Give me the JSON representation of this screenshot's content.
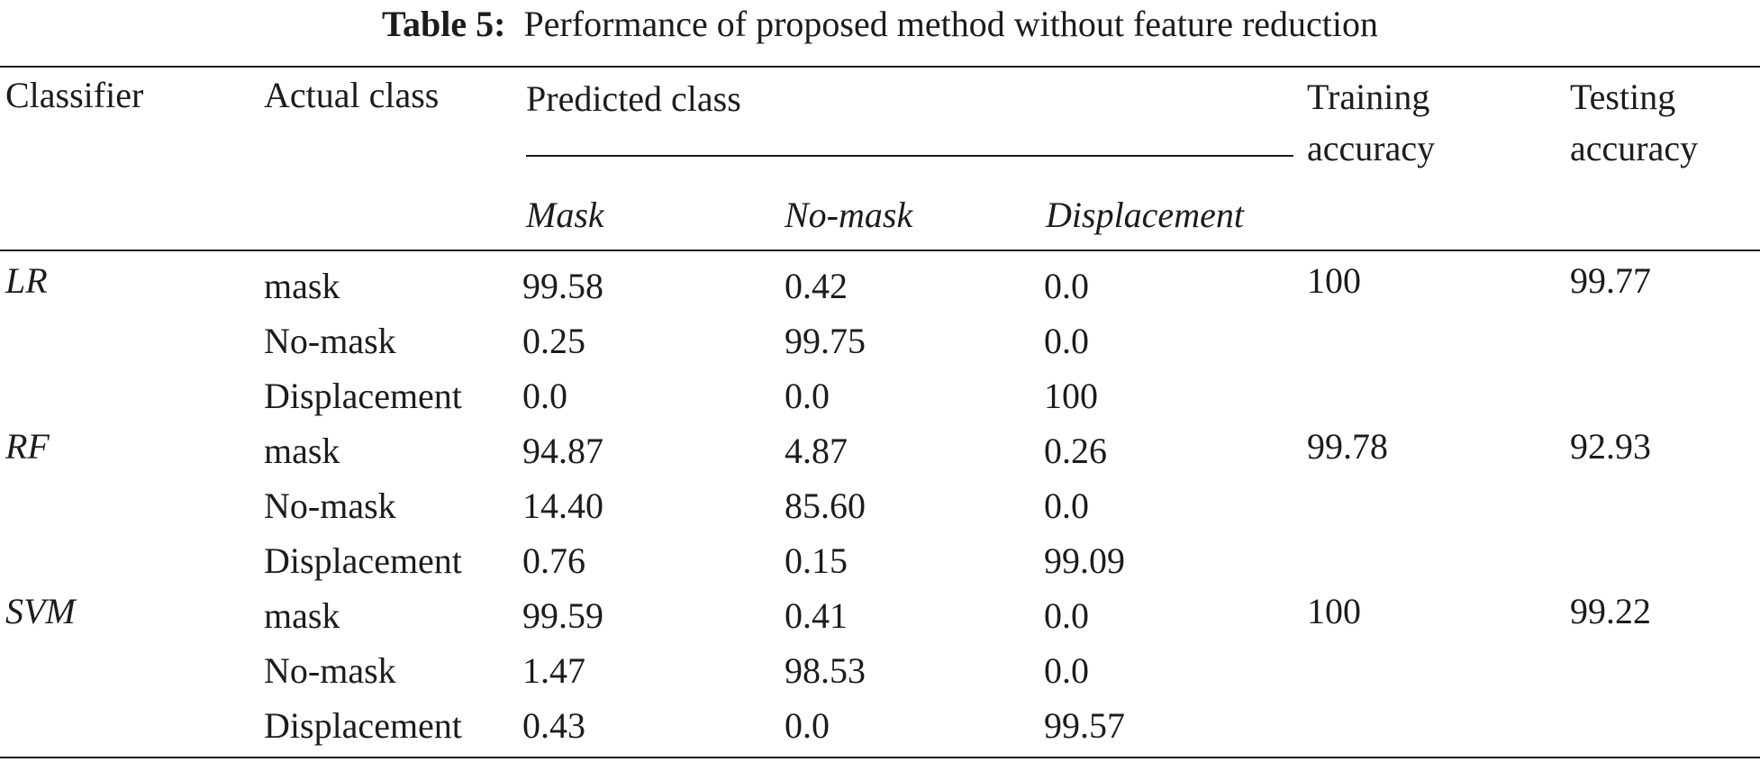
{
  "caption": {
    "label": "Table 5:",
    "text": "Performance of proposed method without feature reduction"
  },
  "table": {
    "headers": {
      "classifier": "Classifier",
      "actual_class": "Actual class",
      "predicted_class": "Predicted class",
      "training_accuracy_line1": "Training",
      "training_accuracy_line2": "accuracy",
      "testing_accuracy_line1": "Testing",
      "testing_accuracy_line2": "accuracy",
      "sub_mask": "Mask",
      "sub_no_mask": "No-mask",
      "sub_displacement": "Displacement"
    },
    "groups": [
      {
        "classifier": "LR",
        "training": "100",
        "testing": "99.77",
        "rows": [
          {
            "actual": "mask",
            "mask": "99.58",
            "no_mask": "0.42",
            "displacement": "0.0"
          },
          {
            "actual": "No-mask",
            "mask": "0.25",
            "no_mask": "99.75",
            "displacement": "0.0"
          },
          {
            "actual": "Displacement",
            "mask": "0.0",
            "no_mask": "0.0",
            "displacement": "100"
          }
        ]
      },
      {
        "classifier": "RF",
        "training": "99.78",
        "testing": "92.93",
        "rows": [
          {
            "actual": "mask",
            "mask": "94.87",
            "no_mask": "4.87",
            "displacement": "0.26"
          },
          {
            "actual": "No-mask",
            "mask": "14.40",
            "no_mask": "85.60",
            "displacement": "0.0"
          },
          {
            "actual": "Displacement",
            "mask": "0.76",
            "no_mask": "0.15",
            "displacement": "99.09"
          }
        ]
      },
      {
        "classifier": "SVM",
        "training": "100",
        "testing": "99.22",
        "rows": [
          {
            "actual": "mask",
            "mask": "99.59",
            "no_mask": "0.41",
            "displacement": "0.0"
          },
          {
            "actual": "No-mask",
            "mask": "1.47",
            "no_mask": "98.53",
            "displacement": "0.0"
          },
          {
            "actual": "Displacement",
            "mask": "0.43",
            "no_mask": "0.0",
            "displacement": "99.57"
          }
        ]
      }
    ]
  }
}
